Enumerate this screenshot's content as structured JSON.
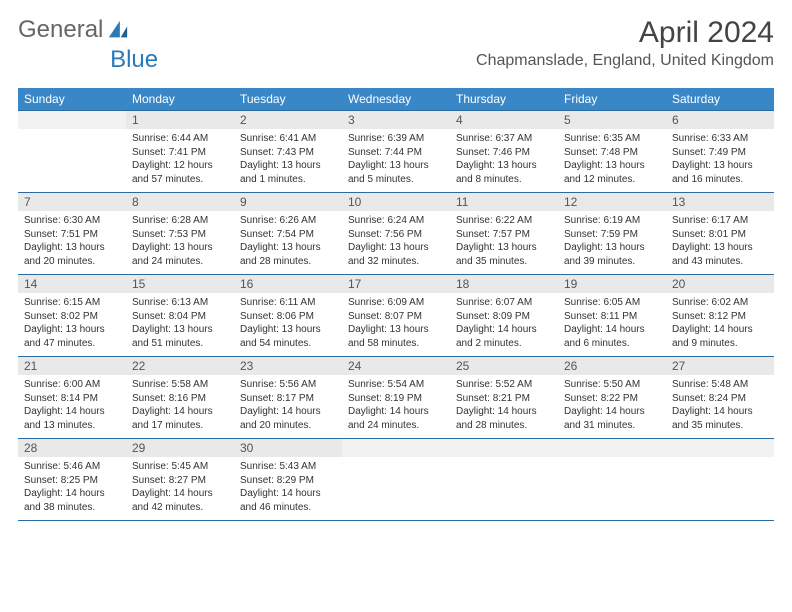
{
  "brand": {
    "part1": "General",
    "part2": "Blue"
  },
  "title": "April 2024",
  "location": "Chapmanslade, England, United Kingdom",
  "dow": [
    "Sunday",
    "Monday",
    "Tuesday",
    "Wednesday",
    "Thursday",
    "Friday",
    "Saturday"
  ],
  "colors": {
    "header_bg": "#3a87c8",
    "border": "#2a6aa0",
    "daynum_bg": "#e9e9e9"
  },
  "weeks": [
    [
      {
        "n": "",
        "sr": "",
        "ss": "",
        "dl1": "",
        "dl2": ""
      },
      {
        "n": "1",
        "sr": "Sunrise: 6:44 AM",
        "ss": "Sunset: 7:41 PM",
        "dl1": "Daylight: 12 hours",
        "dl2": "and 57 minutes."
      },
      {
        "n": "2",
        "sr": "Sunrise: 6:41 AM",
        "ss": "Sunset: 7:43 PM",
        "dl1": "Daylight: 13 hours",
        "dl2": "and 1 minutes."
      },
      {
        "n": "3",
        "sr": "Sunrise: 6:39 AM",
        "ss": "Sunset: 7:44 PM",
        "dl1": "Daylight: 13 hours",
        "dl2": "and 5 minutes."
      },
      {
        "n": "4",
        "sr": "Sunrise: 6:37 AM",
        "ss": "Sunset: 7:46 PM",
        "dl1": "Daylight: 13 hours",
        "dl2": "and 8 minutes."
      },
      {
        "n": "5",
        "sr": "Sunrise: 6:35 AM",
        "ss": "Sunset: 7:48 PM",
        "dl1": "Daylight: 13 hours",
        "dl2": "and 12 minutes."
      },
      {
        "n": "6",
        "sr": "Sunrise: 6:33 AM",
        "ss": "Sunset: 7:49 PM",
        "dl1": "Daylight: 13 hours",
        "dl2": "and 16 minutes."
      }
    ],
    [
      {
        "n": "7",
        "sr": "Sunrise: 6:30 AM",
        "ss": "Sunset: 7:51 PM",
        "dl1": "Daylight: 13 hours",
        "dl2": "and 20 minutes."
      },
      {
        "n": "8",
        "sr": "Sunrise: 6:28 AM",
        "ss": "Sunset: 7:53 PM",
        "dl1": "Daylight: 13 hours",
        "dl2": "and 24 minutes."
      },
      {
        "n": "9",
        "sr": "Sunrise: 6:26 AM",
        "ss": "Sunset: 7:54 PM",
        "dl1": "Daylight: 13 hours",
        "dl2": "and 28 minutes."
      },
      {
        "n": "10",
        "sr": "Sunrise: 6:24 AM",
        "ss": "Sunset: 7:56 PM",
        "dl1": "Daylight: 13 hours",
        "dl2": "and 32 minutes."
      },
      {
        "n": "11",
        "sr": "Sunrise: 6:22 AM",
        "ss": "Sunset: 7:57 PM",
        "dl1": "Daylight: 13 hours",
        "dl2": "and 35 minutes."
      },
      {
        "n": "12",
        "sr": "Sunrise: 6:19 AM",
        "ss": "Sunset: 7:59 PM",
        "dl1": "Daylight: 13 hours",
        "dl2": "and 39 minutes."
      },
      {
        "n": "13",
        "sr": "Sunrise: 6:17 AM",
        "ss": "Sunset: 8:01 PM",
        "dl1": "Daylight: 13 hours",
        "dl2": "and 43 minutes."
      }
    ],
    [
      {
        "n": "14",
        "sr": "Sunrise: 6:15 AM",
        "ss": "Sunset: 8:02 PM",
        "dl1": "Daylight: 13 hours",
        "dl2": "and 47 minutes."
      },
      {
        "n": "15",
        "sr": "Sunrise: 6:13 AM",
        "ss": "Sunset: 8:04 PM",
        "dl1": "Daylight: 13 hours",
        "dl2": "and 51 minutes."
      },
      {
        "n": "16",
        "sr": "Sunrise: 6:11 AM",
        "ss": "Sunset: 8:06 PM",
        "dl1": "Daylight: 13 hours",
        "dl2": "and 54 minutes."
      },
      {
        "n": "17",
        "sr": "Sunrise: 6:09 AM",
        "ss": "Sunset: 8:07 PM",
        "dl1": "Daylight: 13 hours",
        "dl2": "and 58 minutes."
      },
      {
        "n": "18",
        "sr": "Sunrise: 6:07 AM",
        "ss": "Sunset: 8:09 PM",
        "dl1": "Daylight: 14 hours",
        "dl2": "and 2 minutes."
      },
      {
        "n": "19",
        "sr": "Sunrise: 6:05 AM",
        "ss": "Sunset: 8:11 PM",
        "dl1": "Daylight: 14 hours",
        "dl2": "and 6 minutes."
      },
      {
        "n": "20",
        "sr": "Sunrise: 6:02 AM",
        "ss": "Sunset: 8:12 PM",
        "dl1": "Daylight: 14 hours",
        "dl2": "and 9 minutes."
      }
    ],
    [
      {
        "n": "21",
        "sr": "Sunrise: 6:00 AM",
        "ss": "Sunset: 8:14 PM",
        "dl1": "Daylight: 14 hours",
        "dl2": "and 13 minutes."
      },
      {
        "n": "22",
        "sr": "Sunrise: 5:58 AM",
        "ss": "Sunset: 8:16 PM",
        "dl1": "Daylight: 14 hours",
        "dl2": "and 17 minutes."
      },
      {
        "n": "23",
        "sr": "Sunrise: 5:56 AM",
        "ss": "Sunset: 8:17 PM",
        "dl1": "Daylight: 14 hours",
        "dl2": "and 20 minutes."
      },
      {
        "n": "24",
        "sr": "Sunrise: 5:54 AM",
        "ss": "Sunset: 8:19 PM",
        "dl1": "Daylight: 14 hours",
        "dl2": "and 24 minutes."
      },
      {
        "n": "25",
        "sr": "Sunrise: 5:52 AM",
        "ss": "Sunset: 8:21 PM",
        "dl1": "Daylight: 14 hours",
        "dl2": "and 28 minutes."
      },
      {
        "n": "26",
        "sr": "Sunrise: 5:50 AM",
        "ss": "Sunset: 8:22 PM",
        "dl1": "Daylight: 14 hours",
        "dl2": "and 31 minutes."
      },
      {
        "n": "27",
        "sr": "Sunrise: 5:48 AM",
        "ss": "Sunset: 8:24 PM",
        "dl1": "Daylight: 14 hours",
        "dl2": "and 35 minutes."
      }
    ],
    [
      {
        "n": "28",
        "sr": "Sunrise: 5:46 AM",
        "ss": "Sunset: 8:25 PM",
        "dl1": "Daylight: 14 hours",
        "dl2": "and 38 minutes."
      },
      {
        "n": "29",
        "sr": "Sunrise: 5:45 AM",
        "ss": "Sunset: 8:27 PM",
        "dl1": "Daylight: 14 hours",
        "dl2": "and 42 minutes."
      },
      {
        "n": "30",
        "sr": "Sunrise: 5:43 AM",
        "ss": "Sunset: 8:29 PM",
        "dl1": "Daylight: 14 hours",
        "dl2": "and 46 minutes."
      },
      {
        "n": "",
        "sr": "",
        "ss": "",
        "dl1": "",
        "dl2": ""
      },
      {
        "n": "",
        "sr": "",
        "ss": "",
        "dl1": "",
        "dl2": ""
      },
      {
        "n": "",
        "sr": "",
        "ss": "",
        "dl1": "",
        "dl2": ""
      },
      {
        "n": "",
        "sr": "",
        "ss": "",
        "dl1": "",
        "dl2": ""
      }
    ]
  ]
}
